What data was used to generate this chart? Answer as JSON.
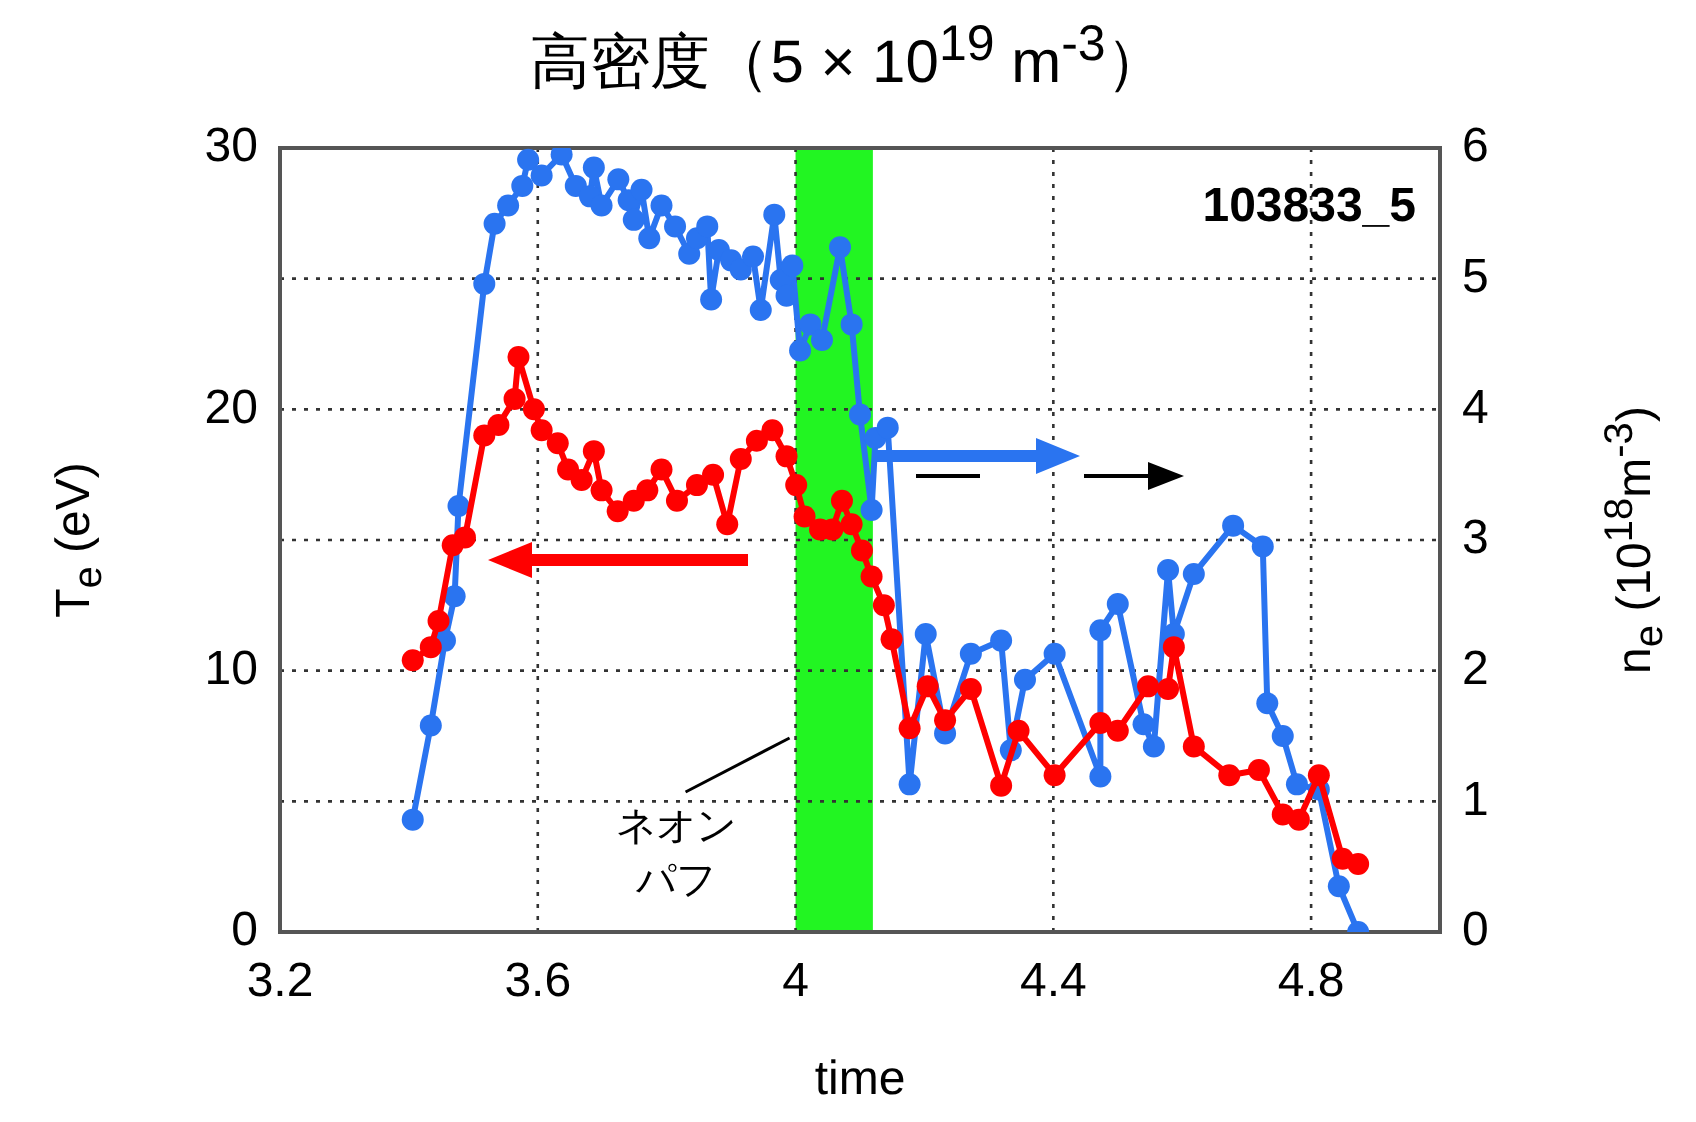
{
  "chart_data": {
    "type": "line",
    "title": "高密度（5 × 10$^{19}$ m$^{-3}$）",
    "xlabel": "time",
    "ylabel": "T$_{e}$ (eV)",
    "y2label": "n$_{e}$ (10$^{18}$m$^{-3}$)",
    "xlim": [
      3.2,
      5.0
    ],
    "xticks": [
      3.2,
      3.6,
      4,
      4.4,
      4.8
    ],
    "ylim": [
      0,
      30
    ],
    "yticks": [
      0,
      10,
      20,
      30
    ],
    "y2lim": [
      0,
      6
    ],
    "y2ticks": [
      0,
      1,
      2,
      3,
      4,
      5,
      6
    ],
    "grid": true,
    "legend": false,
    "marker": "circle",
    "line_style": "solid",
    "annotations": [
      "103833_5"
    ],
    "bands": [
      {
        "axis": "x",
        "from": 4.0,
        "to": 4.12,
        "label": "ネオンパフ",
        "color": "#22f522"
      }
    ],
    "series": [
      {
        "color": "#ff0000",
        "axis": "y",
        "x": [
          3.406,
          3.434,
          3.446,
          3.468,
          3.487,
          3.517,
          3.539,
          3.564,
          3.57,
          3.594,
          3.606,
          3.631,
          3.647,
          3.668,
          3.687,
          3.699,
          3.724,
          3.749,
          3.77,
          3.792,
          3.816,
          3.847,
          3.872,
          3.894,
          3.915,
          3.94,
          3.964,
          3.986,
          4.001,
          4.014,
          4.038,
          4.057,
          4.072,
          4.087,
          4.103,
          4.118,
          4.137,
          4.149,
          4.177,
          4.205,
          4.232,
          4.272,
          4.319,
          4.346,
          4.402,
          4.473,
          4.5,
          4.547,
          4.578,
          4.587,
          4.618,
          4.673,
          4.719,
          4.756,
          4.781,
          4.812,
          4.849,
          4.873
        ],
        "values": [
          10.4,
          10.9,
          11.9,
          14.8,
          15.1,
          19.0,
          19.4,
          20.4,
          22.0,
          20.0,
          19.2,
          18.7,
          17.7,
          17.3,
          18.4,
          16.9,
          16.1,
          16.5,
          16.9,
          17.7,
          16.5,
          17.1,
          17.5,
          15.6,
          18.1,
          18.8,
          19.2,
          18.2,
          17.1,
          15.9,
          15.4,
          15.4,
          16.5,
          15.6,
          14.6,
          13.6,
          12.5,
          11.2,
          7.8,
          9.4,
          8.1,
          9.3,
          5.6,
          7.7,
          6.0,
          8.0,
          7.7,
          9.4,
          9.3,
          10.9,
          7.1,
          6.0,
          6.2,
          4.5,
          4.3,
          6.0,
          2.8,
          2.6
        ]
      },
      {
        "color": "#2a74f0",
        "axis": "y2",
        "x": [
          3.406,
          3.434,
          3.456,
          3.471,
          3.477,
          3.517,
          3.533,
          3.554,
          3.576,
          3.585,
          3.606,
          3.637,
          3.659,
          3.681,
          3.687,
          3.699,
          3.725,
          3.741,
          3.749,
          3.761,
          3.773,
          3.792,
          3.813,
          3.835,
          3.847,
          3.863,
          3.869,
          3.881,
          3.9,
          3.915,
          3.934,
          3.946,
          3.967,
          3.977,
          3.986,
          3.995,
          4.007,
          4.023,
          4.041,
          4.069,
          4.087,
          4.1,
          4.118,
          4.124,
          4.143,
          4.177,
          4.202,
          4.232,
          4.272,
          4.319,
          4.334,
          4.356,
          4.402,
          4.473,
          4.473,
          4.5,
          4.54,
          4.556,
          4.578,
          4.587,
          4.618,
          4.679,
          4.725,
          4.732,
          4.756,
          4.778,
          4.812,
          4.843,
          4.873
        ],
        "values": [
          0.86,
          1.58,
          2.23,
          2.57,
          3.26,
          4.96,
          5.42,
          5.56,
          5.71,
          5.91,
          5.79,
          5.95,
          5.71,
          5.63,
          5.85,
          5.56,
          5.76,
          5.6,
          5.45,
          5.68,
          5.31,
          5.56,
          5.4,
          5.19,
          5.31,
          5.4,
          4.84,
          5.22,
          5.14,
          5.07,
          5.17,
          4.76,
          5.49,
          4.99,
          4.87,
          5.1,
          4.45,
          4.65,
          4.53,
          5.24,
          4.65,
          3.96,
          3.23,
          3.78,
          3.86,
          1.13,
          2.28,
          1.52,
          2.13,
          2.23,
          1.39,
          1.93,
          2.13,
          1.19,
          2.31,
          2.51,
          1.59,
          1.42,
          2.77,
          2.28,
          2.74,
          3.11,
          2.95,
          1.75,
          1.5,
          1.13,
          1.09,
          0.35,
          0.0
        ]
      }
    ]
  }
}
